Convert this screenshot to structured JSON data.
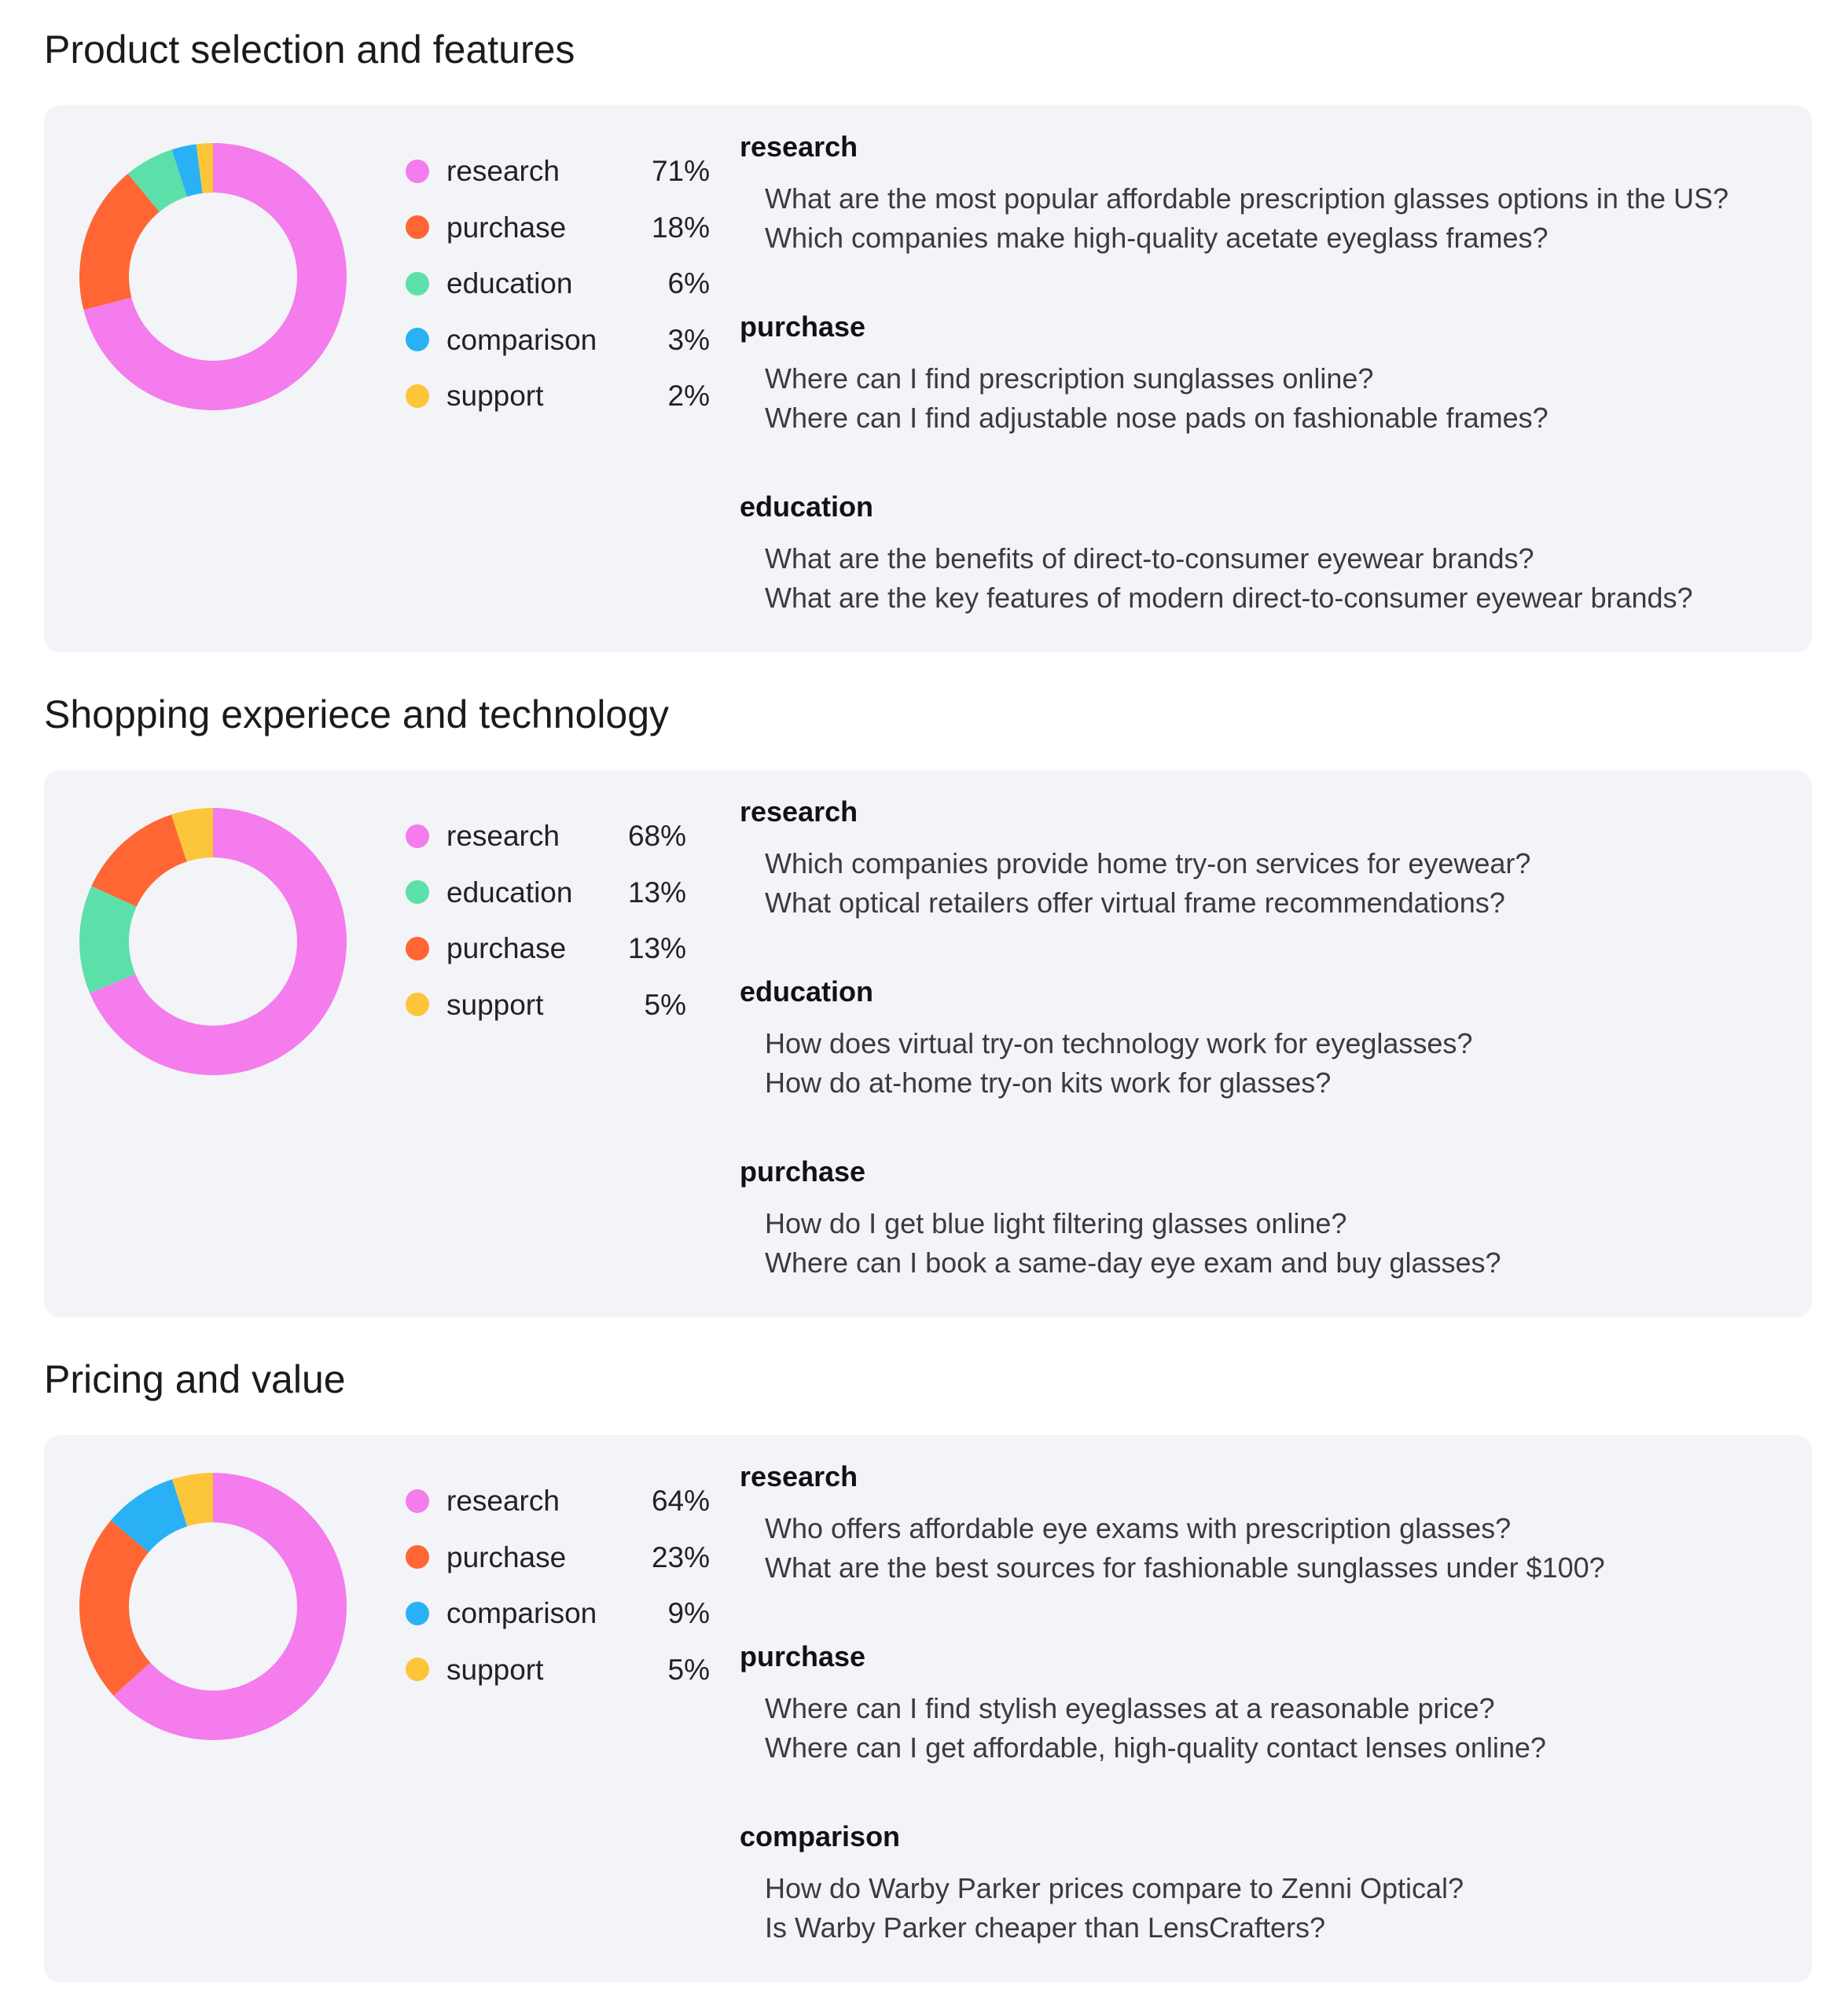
{
  "colors": {
    "research": "#f47cec",
    "purchase": "#ff6633",
    "education": "#5ddfaa",
    "comparison": "#2ab1f5",
    "support": "#fcc53a"
  },
  "sections": [
    {
      "title": "Product selection and features",
      "legend": [
        {
          "label": "research",
          "pct": "71%"
        },
        {
          "label": "purchase",
          "pct": "18%"
        },
        {
          "label": "education",
          "pct": "6%"
        },
        {
          "label": "comparison",
          "pct": "3%"
        },
        {
          "label": "support",
          "pct": "2%"
        }
      ],
      "groups": [
        {
          "title": "research",
          "questions": [
            "What are the most popular affordable prescription glasses options in the US?",
            "Which companies make high-quality acetate eyeglass frames?"
          ]
        },
        {
          "title": "purchase",
          "questions": [
            "Where can I find prescription sunglasses online?",
            "Where can I find adjustable nose pads on fashionable frames?"
          ]
        },
        {
          "title": "education",
          "questions": [
            "What are the benefits of direct-to-consumer eyewear brands?",
            "What are the key features of modern direct-to-consumer eyewear brands?"
          ]
        }
      ]
    },
    {
      "title": "Shopping experiece and technology",
      "legend": [
        {
          "label": "research",
          "pct": "68%"
        },
        {
          "label": "education",
          "pct": "13%"
        },
        {
          "label": "purchase",
          "pct": "13%"
        },
        {
          "label": "support",
          "pct": "5%"
        }
      ],
      "groups": [
        {
          "title": "research",
          "questions": [
            "Which companies provide home try-on services for eyewear?",
            "What optical retailers offer virtual frame recommendations?"
          ]
        },
        {
          "title": "education",
          "questions": [
            "How does virtual try-on technology work for eyeglasses?",
            "How do at-home try-on kits work for glasses?"
          ]
        },
        {
          "title": "purchase",
          "questions": [
            "How do I get blue light filtering glasses online?",
            "Where can I book a same-day eye exam and buy glasses?"
          ]
        }
      ]
    },
    {
      "title": "Pricing and value",
      "legend": [
        {
          "label": "research",
          "pct": "64%"
        },
        {
          "label": "purchase",
          "pct": "23%"
        },
        {
          "label": "comparison",
          "pct": "9%"
        },
        {
          "label": "support",
          "pct": "5%"
        }
      ],
      "groups": [
        {
          "title": "research",
          "questions": [
            "Who offers affordable eye exams with prescription glasses?",
            "What are the best sources for fashionable sunglasses under $100?"
          ]
        },
        {
          "title": "purchase",
          "questions": [
            "Where can I find stylish eyeglasses at a reasonable price?",
            "Where can I get affordable, high-quality contact lenses online?"
          ]
        },
        {
          "title": "comparison",
          "questions": [
            "How do Warby Parker prices compare to Zenni Optical?",
            "Is Warby Parker cheaper than LensCrafters?"
          ]
        }
      ]
    }
  ],
  "chart_data": [
    {
      "type": "pie",
      "title": "Product selection and features",
      "categories": [
        "research",
        "purchase",
        "education",
        "comparison",
        "support"
      ],
      "values": [
        71,
        18,
        6,
        3,
        2
      ]
    },
    {
      "type": "pie",
      "title": "Shopping experiece and technology",
      "categories": [
        "research",
        "education",
        "purchase",
        "support"
      ],
      "values": [
        68,
        13,
        13,
        5
      ]
    },
    {
      "type": "pie",
      "title": "Pricing and value",
      "categories": [
        "research",
        "purchase",
        "comparison",
        "support"
      ],
      "values": [
        64,
        23,
        9,
        5
      ]
    }
  ]
}
